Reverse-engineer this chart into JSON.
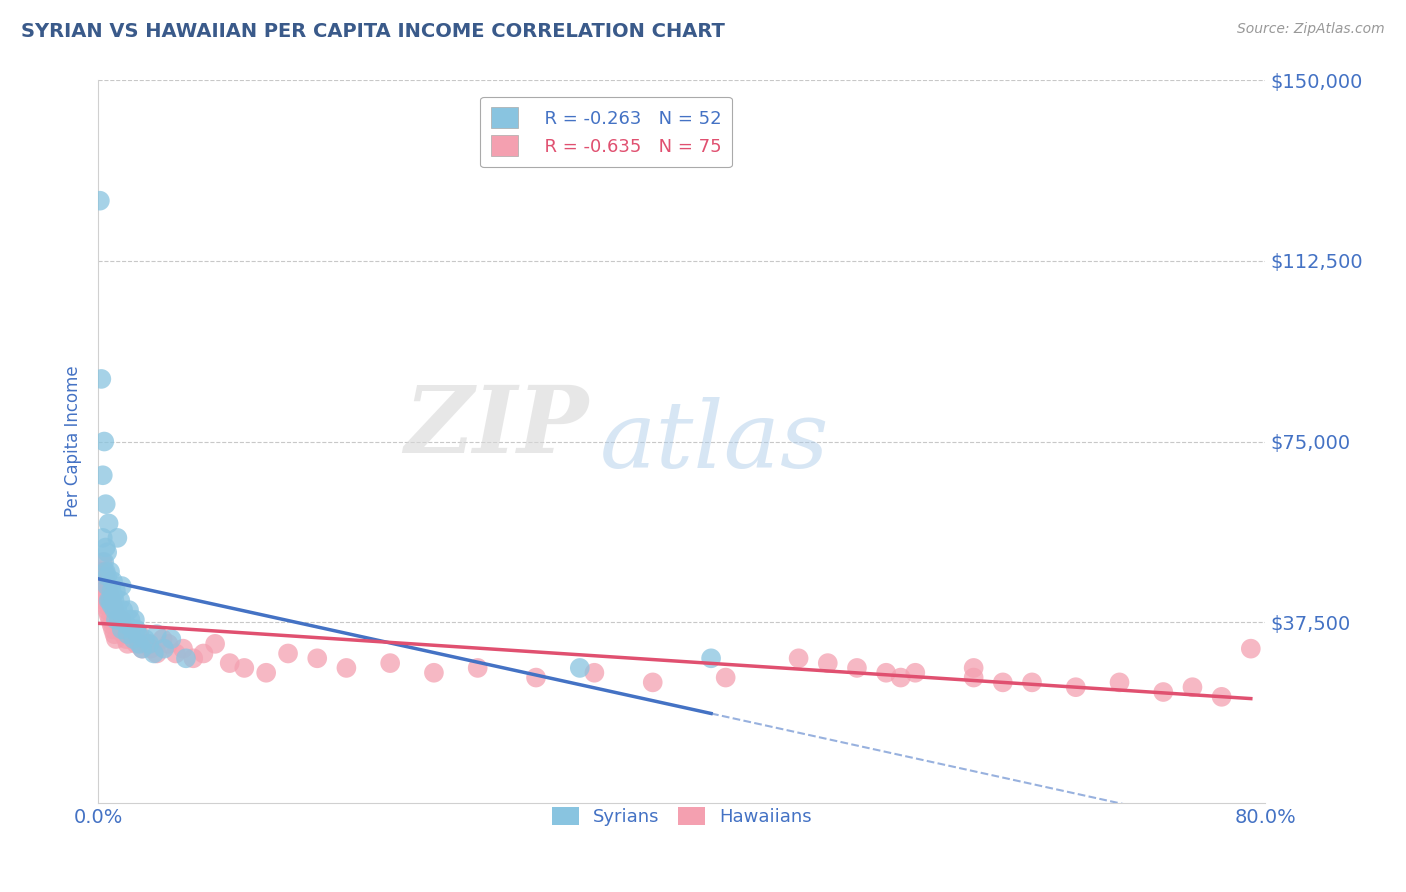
{
  "title": "SYRIAN VS HAWAIIAN PER CAPITA INCOME CORRELATION CHART",
  "source_text": "Source: ZipAtlas.com",
  "ylabel": "Per Capita Income",
  "xlim": [
    0.0,
    0.8
  ],
  "ylim": [
    0,
    150000
  ],
  "yticks": [
    0,
    37500,
    75000,
    112500,
    150000
  ],
  "ytick_labels": [
    "",
    "$37,500",
    "$75,000",
    "$112,500",
    "$150,000"
  ],
  "xtick_positions": [
    0.0,
    0.8
  ],
  "xtick_labels": [
    "0.0%",
    "80.0%"
  ],
  "blue_color": "#89c4e0",
  "pink_color": "#f4a0b0",
  "blue_line_color": "#4472c4",
  "pink_line_color": "#e05070",
  "legend_R_blue": "R = -0.263",
  "legend_N_blue": "N = 52",
  "legend_R_pink": "R = -0.635",
  "legend_N_pink": "N = 75",
  "watermark_zip": "ZIP",
  "watermark_atlas": "atlas",
  "background_color": "#ffffff",
  "grid_color": "#c8c8c8",
  "title_color": "#3a5a8a",
  "tick_label_color": "#4472c4",
  "syrians_x": [
    0.001,
    0.002,
    0.003,
    0.003,
    0.004,
    0.004,
    0.005,
    0.005,
    0.005,
    0.006,
    0.006,
    0.006,
    0.007,
    0.007,
    0.008,
    0.008,
    0.009,
    0.009,
    0.01,
    0.01,
    0.011,
    0.011,
    0.012,
    0.012,
    0.013,
    0.013,
    0.014,
    0.015,
    0.016,
    0.016,
    0.017,
    0.018,
    0.019,
    0.02,
    0.021,
    0.022,
    0.023,
    0.024,
    0.025,
    0.026,
    0.027,
    0.028,
    0.03,
    0.032,
    0.035,
    0.038,
    0.04,
    0.045,
    0.05,
    0.06,
    0.33,
    0.42
  ],
  "syrians_y": [
    125000,
    88000,
    68000,
    55000,
    75000,
    50000,
    48000,
    53000,
    62000,
    47000,
    52000,
    45000,
    42000,
    58000,
    48000,
    42000,
    44000,
    41000,
    43000,
    46000,
    42000,
    40000,
    38000,
    44000,
    55000,
    40000,
    38000,
    42000,
    45000,
    36000,
    40000,
    38000,
    37000,
    35000,
    40000,
    38000,
    36000,
    34000,
    38000,
    36000,
    35000,
    33000,
    32000,
    34000,
    33000,
    31000,
    35000,
    32000,
    34000,
    30000,
    28000,
    30000
  ],
  "hawaiians_x": [
    0.001,
    0.002,
    0.002,
    0.003,
    0.003,
    0.004,
    0.004,
    0.005,
    0.005,
    0.006,
    0.006,
    0.007,
    0.007,
    0.008,
    0.008,
    0.009,
    0.009,
    0.01,
    0.01,
    0.011,
    0.011,
    0.012,
    0.012,
    0.013,
    0.014,
    0.015,
    0.016,
    0.017,
    0.018,
    0.019,
    0.02,
    0.022,
    0.024,
    0.026,
    0.028,
    0.03,
    0.033,
    0.036,
    0.04,
    0.044,
    0.048,
    0.053,
    0.058,
    0.065,
    0.072,
    0.08,
    0.09,
    0.1,
    0.115,
    0.13,
    0.15,
    0.17,
    0.2,
    0.23,
    0.26,
    0.3,
    0.34,
    0.38,
    0.43,
    0.48,
    0.52,
    0.56,
    0.6,
    0.64,
    0.67,
    0.7,
    0.73,
    0.75,
    0.77,
    0.79,
    0.6,
    0.55,
    0.5,
    0.54,
    0.62
  ],
  "hawaiians_y": [
    48000,
    46000,
    44000,
    50000,
    43000,
    48000,
    42000,
    47000,
    41000,
    45000,
    40000,
    44000,
    39000,
    43000,
    38000,
    42000,
    37000,
    41000,
    36000,
    40000,
    35000,
    39000,
    34000,
    38000,
    37000,
    36000,
    38000,
    35000,
    36000,
    34000,
    33000,
    35000,
    34000,
    33000,
    35000,
    32000,
    33000,
    32000,
    31000,
    34000,
    33000,
    31000,
    32000,
    30000,
    31000,
    33000,
    29000,
    28000,
    27000,
    31000,
    30000,
    28000,
    29000,
    27000,
    28000,
    26000,
    27000,
    25000,
    26000,
    30000,
    28000,
    27000,
    26000,
    25000,
    24000,
    25000,
    23000,
    24000,
    22000,
    32000,
    28000,
    26000,
    29000,
    27000,
    25000
  ]
}
